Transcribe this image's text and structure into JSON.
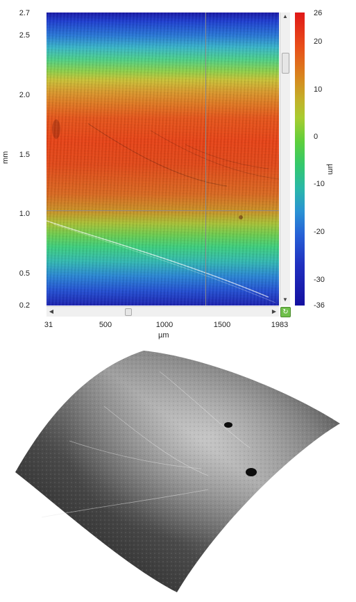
{
  "heightmap": {
    "y_axis": {
      "label": "mm",
      "ticks": [
        "2.7",
        "2.5",
        "2.0",
        "1.5",
        "1.0",
        "0.5",
        "0.2"
      ]
    },
    "x_axis": {
      "label": "µm",
      "ticks": [
        "31",
        "500",
        "1000",
        "1500",
        "1983"
      ]
    },
    "colorbar": {
      "label": "µm",
      "ticks": [
        "26",
        "20",
        "10",
        "0",
        "-10",
        "-20",
        "-30",
        "-36"
      ]
    },
    "colormap": "rainbow",
    "reset_icon": "refresh-icon"
  },
  "surface_view": {
    "style": "grayscale 3D surface rendering",
    "shape": "curved"
  }
}
